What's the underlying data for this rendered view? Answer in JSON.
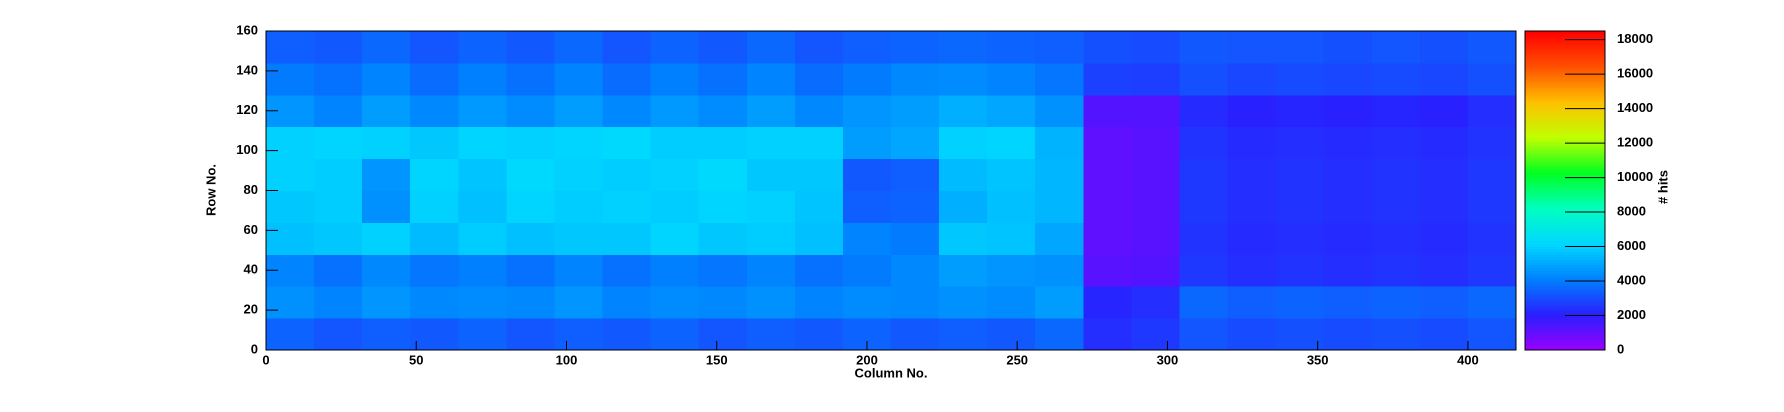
{
  "chart_data": {
    "type": "heatmap",
    "xlabel": "Column No.",
    "ylabel": "Row No.",
    "zlabel": "# hits",
    "xbins": [
      0,
      16,
      32,
      48,
      64,
      80,
      96,
      112,
      128,
      144,
      160,
      176,
      192,
      208,
      224,
      240,
      256,
      272,
      288,
      304,
      320,
      336,
      352,
      368,
      384,
      400,
      416
    ],
    "ybins": [
      0,
      16,
      32,
      48,
      64,
      80,
      96,
      112,
      128,
      144,
      160
    ],
    "z": [
      [
        3500,
        3200,
        3400,
        3300,
        3500,
        3200,
        3400,
        3300,
        3500,
        3200,
        3400,
        3300,
        3500,
        3300,
        3400,
        3300,
        3600,
        2400,
        2600,
        3200,
        3000,
        3100,
        3000,
        3100,
        3000,
        3200
      ],
      [
        4500,
        4200,
        4600,
        4300,
        4400,
        4300,
        4600,
        4200,
        4400,
        4300,
        4500,
        4200,
        4400,
        4300,
        4500,
        4400,
        4800,
        2200,
        2400,
        3600,
        3400,
        3500,
        3400,
        3500,
        3400,
        3600
      ],
      [
        4200,
        3800,
        4300,
        3900,
        4100,
        3800,
        4200,
        3800,
        4100,
        3900,
        4200,
        3800,
        4000,
        4300,
        4800,
        4600,
        4500,
        1200,
        1300,
        2600,
        2400,
        2500,
        2400,
        2500,
        2400,
        2600
      ],
      [
        5600,
        5800,
        6000,
        5500,
        5900,
        5600,
        5800,
        5800,
        6100,
        5800,
        5900,
        5600,
        4200,
        4000,
        5800,
        5700,
        5000,
        1100,
        1200,
        2500,
        2300,
        2400,
        2300,
        2400,
        2300,
        2500
      ],
      [
        5800,
        5900,
        4500,
        6000,
        5600,
        6100,
        5900,
        6000,
        5900,
        6100,
        6000,
        5700,
        3400,
        3500,
        5200,
        5600,
        5400,
        1100,
        1200,
        2600,
        2400,
        2500,
        2400,
        2500,
        2400,
        2600
      ],
      [
        6000,
        5900,
        4600,
        6100,
        5700,
        6200,
        6000,
        5900,
        6000,
        6200,
        5800,
        5800,
        3300,
        3400,
        5500,
        5700,
        5400,
        1100,
        1200,
        2600,
        2400,
        2500,
        2400,
        2500,
        2400,
        2600
      ],
      [
        6000,
        6100,
        6000,
        5800,
        6100,
        6000,
        6100,
        6200,
        5900,
        5900,
        6000,
        6000,
        4800,
        5000,
        6000,
        6100,
        5300,
        1100,
        1200,
        2500,
        2300,
        2400,
        2300,
        2400,
        2300,
        2500
      ],
      [
        4600,
        4200,
        4800,
        4300,
        4700,
        4400,
        4800,
        4300,
        4700,
        4400,
        4800,
        4300,
        4600,
        4800,
        5200,
        5000,
        4500,
        1300,
        1300,
        2300,
        2100,
        2200,
        2100,
        2200,
        2100,
        2400
      ],
      [
        4000,
        3800,
        4200,
        3700,
        4100,
        3800,
        4200,
        3700,
        4100,
        3800,
        4200,
        3700,
        4000,
        4300,
        4400,
        4200,
        3900,
        2800,
        2700,
        3100,
        2900,
        3000,
        2900,
        3000,
        2900,
        3100
      ],
      [
        3400,
        3300,
        3600,
        3200,
        3500,
        3300,
        3600,
        3200,
        3500,
        3300,
        3600,
        3200,
        3400,
        3500,
        3600,
        3500,
        3400,
        3100,
        3000,
        3300,
        3200,
        3200,
        3100,
        3200,
        3100,
        3300
      ]
    ],
    "xlim": [
      0,
      416
    ],
    "xticks": [
      0,
      50,
      100,
      150,
      200,
      250,
      300,
      350,
      400
    ],
    "ylim": [
      0,
      160
    ],
    "yticks": [
      0,
      20,
      40,
      60,
      80,
      100,
      120,
      140,
      160
    ],
    "zlim": [
      0,
      18500
    ],
    "zticks": [
      0,
      2000,
      4000,
      6000,
      8000,
      10000,
      12000,
      14000,
      16000,
      18000
    ],
    "colormap": [
      "#9900ff",
      "#2a1eff",
      "#0080ff",
      "#00d8ff",
      "#00ffc0",
      "#00ff20",
      "#c0ff00",
      "#ffc000",
      "#ff5000",
      "#ff0000"
    ]
  }
}
